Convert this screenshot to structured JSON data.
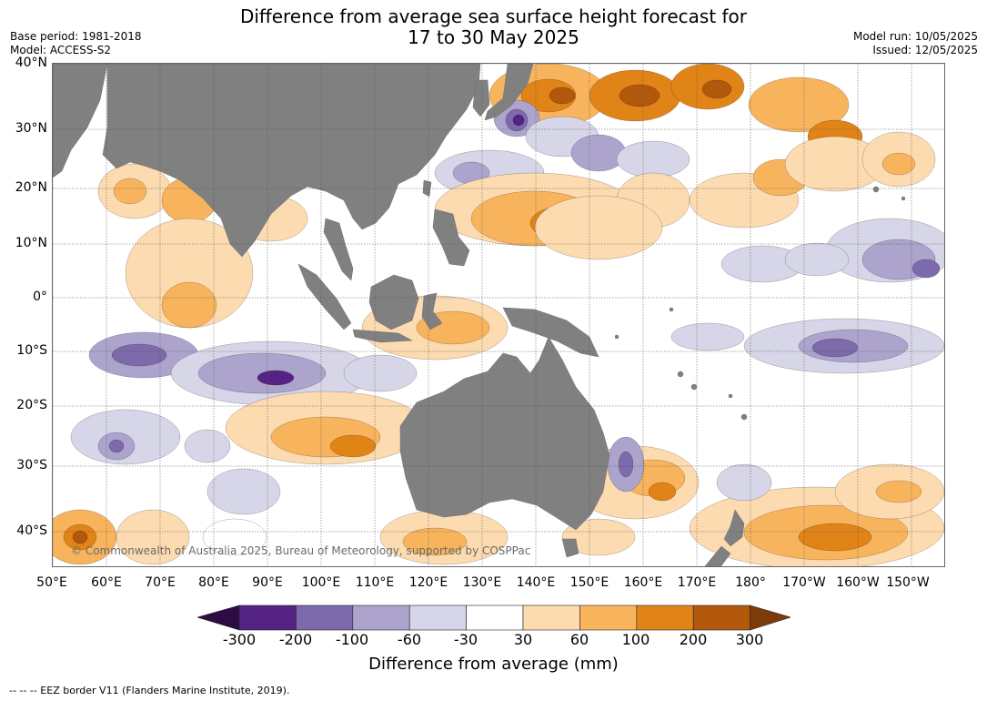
{
  "header": {
    "title_line1": "Difference from average sea surface height forecast for",
    "title_line2": "17 to 30 May 2025",
    "base_period": "Base period: 1981-2018",
    "model": "Model: ACCESS-S2",
    "model_run": "Model run: 10/05/2025",
    "issued": "Issued: 12/05/2025"
  },
  "map": {
    "lat_labels": [
      "40°N",
      "30°N",
      "20°N",
      "10°N",
      "0°",
      "10°S",
      "20°S",
      "30°S",
      "40°S"
    ],
    "lon_labels": [
      "50°E",
      "60°E",
      "70°E",
      "80°E",
      "90°E",
      "100°E",
      "110°E",
      "120°E",
      "130°E",
      "140°E",
      "150°E",
      "160°E",
      "170°E",
      "180°",
      "170°W",
      "160°W",
      "150°W"
    ],
    "credit": "© Commonwealth of Australia 2025, Bureau of Meteorology, supported by COSPPac",
    "land_color": "#808080",
    "grid": true
  },
  "legend": {
    "ticks": [
      "-300",
      "-200",
      "-100",
      "-60",
      "-30",
      "30",
      "60",
      "100",
      "200",
      "300"
    ],
    "bins": [
      {
        "range": "< -300",
        "color": "#2d0b45"
      },
      {
        "range": "-300 to -200",
        "color": "#552384"
      },
      {
        "range": "-200 to -100",
        "color": "#7c6aaa"
      },
      {
        "range": "-100 to -60",
        "color": "#aca4cc"
      },
      {
        "range": "-60 to -30",
        "color": "#d6d6e8"
      },
      {
        "range": "-30 to 30",
        "color": "#ffffff"
      },
      {
        "range": "30 to 60",
        "color": "#fddbb0"
      },
      {
        "range": "60 to 100",
        "color": "#f8b45d"
      },
      {
        "range": "100 to 200",
        "color": "#e08418"
      },
      {
        "range": "200 to 300",
        "color": "#b2580c"
      },
      {
        "range": "> 300",
        "color": "#7e3b0a"
      }
    ],
    "label": "Difference from average (mm)"
  },
  "footer": {
    "text": "--  --  -- EEZ border V11 (Flanders Marine Institute, 2019)."
  }
}
